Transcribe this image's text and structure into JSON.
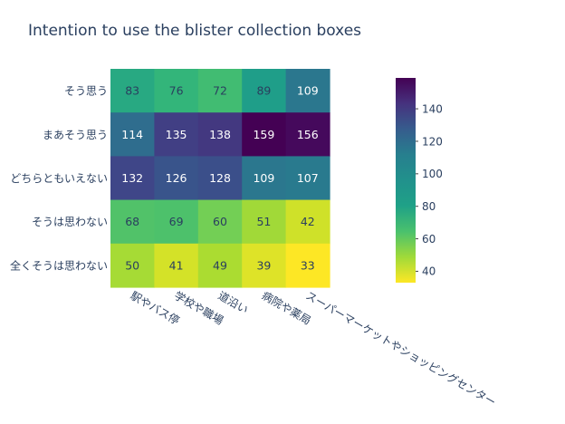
{
  "chart_data": {
    "type": "heatmap",
    "title": "Intention to use the blister collection boxes",
    "x_categories": [
      "駅やバス停",
      "学校や職場",
      "道沿い",
      "病院や薬局",
      "スーパーマーケットやショッピングセンター"
    ],
    "y_categories": [
      "そう思う",
      "まあそう思う",
      "どちらともいえない",
      "そうは思わない",
      "全くそうは思わない"
    ],
    "values": [
      [
        83,
        76,
        72,
        89,
        109
      ],
      [
        114,
        135,
        138,
        159,
        156
      ],
      [
        132,
        126,
        128,
        109,
        107
      ],
      [
        68,
        69,
        60,
        51,
        42
      ],
      [
        50,
        41,
        49,
        39,
        33
      ]
    ],
    "colorscale": "Viridis (reversed: high = dark purple, low = yellow)",
    "zrange": [
      33,
      159
    ],
    "colorbar_ticks": [
      40,
      60,
      80,
      100,
      120,
      140
    ],
    "colors": {
      "title": "#2a3f5f",
      "tick_text": "#2a3f5f",
      "label_dark": "#2a3f5f",
      "label_light": "#ffffff"
    }
  }
}
